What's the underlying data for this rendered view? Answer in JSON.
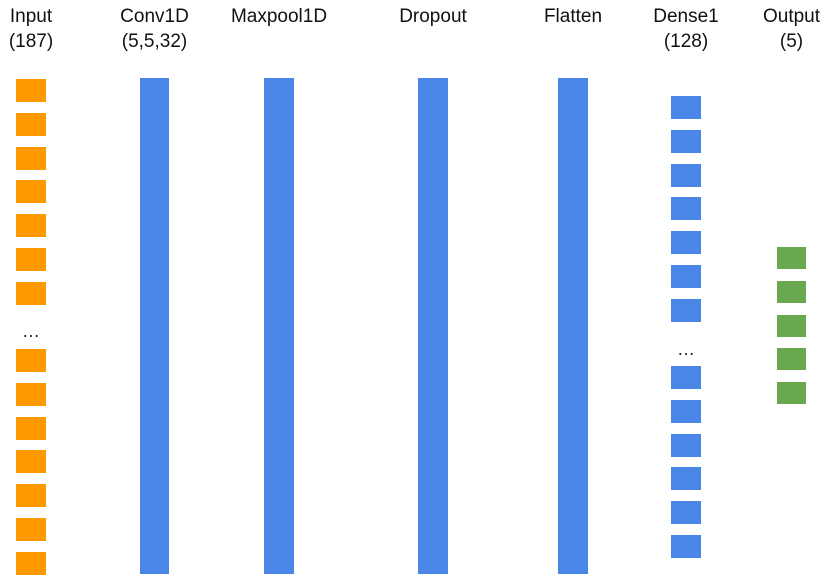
{
  "colors": {
    "input": "#ff9900",
    "hidden": "#4a86e8",
    "output": "#6aa84f"
  },
  "layers": {
    "input": {
      "name": "Input",
      "detail": "(187)",
      "ellipsis": "…"
    },
    "conv1d": {
      "name": "Conv1D",
      "detail": "(5,5,32)"
    },
    "maxpool1d": {
      "name": "Maxpool1D",
      "detail": ""
    },
    "dropout": {
      "name": "Dropout",
      "detail": ""
    },
    "flatten": {
      "name": "Flatten",
      "detail": ""
    },
    "dense1": {
      "name": "Dense1",
      "detail": "(128)",
      "ellipsis": "…"
    },
    "output": {
      "name": "Output",
      "detail": "(5)"
    }
  }
}
